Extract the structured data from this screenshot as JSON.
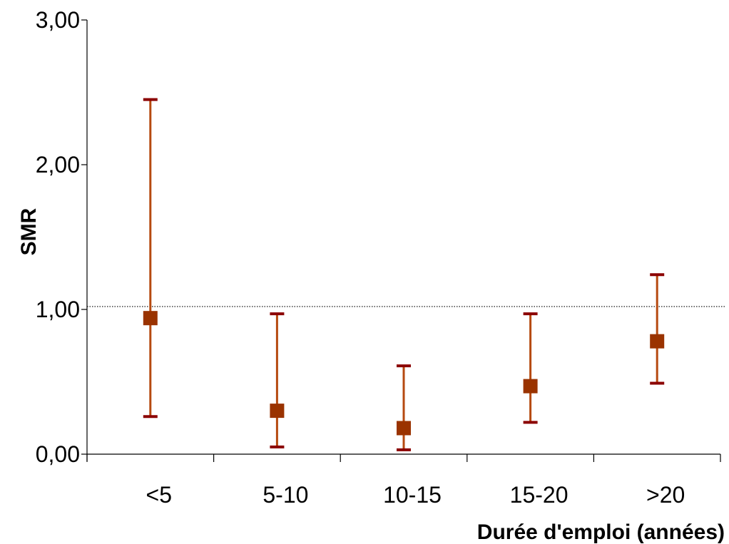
{
  "chart_data": {
    "type": "errorbar",
    "xlabel": "Durée d'emploi (années)",
    "ylabel": "SMR",
    "ylim": [
      0,
      3
    ],
    "y_ticks": [
      "0,00",
      "1,00",
      "2,00",
      "3,00"
    ],
    "categories": [
      "<5",
      "5-10",
      "10-15",
      "15-20",
      ">20"
    ],
    "values": [
      0.94,
      0.3,
      0.18,
      0.47,
      0.78
    ],
    "lower": [
      0.26,
      0.05,
      0.03,
      0.22,
      0.49
    ],
    "upper": [
      2.45,
      0.97,
      0.61,
      0.97,
      1.24
    ],
    "reference_line": 1.02,
    "grid": false,
    "colors": {
      "marker": "#9a3300",
      "error_bar": "#b64a10",
      "cap": "#8b0000",
      "axis": "#000000",
      "reference_line": "#000000"
    }
  }
}
